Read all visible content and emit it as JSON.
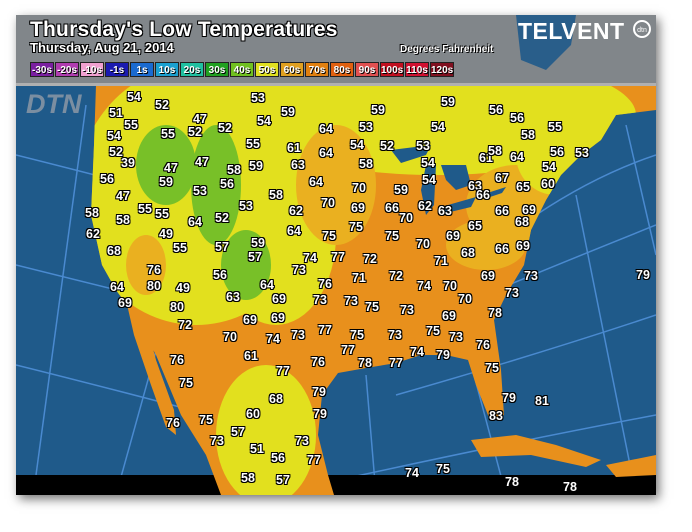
{
  "header": {
    "title": "Thursday's Low Temperatures",
    "date": "Thursday, Aug 21, 2014",
    "units": "Degrees Fahrenheit",
    "logo": "TELVENT",
    "logo_badge": "dtn",
    "watermark": "DTN"
  },
  "legend": [
    {
      "label": "-30s",
      "color": "#7a1fa0"
    },
    {
      "label": "-20s",
      "color": "#b03cb0"
    },
    {
      "label": "-10s",
      "color": "#f0a0d0"
    },
    {
      "label": "-1s",
      "color": "#1a1ab0"
    },
    {
      "label": "1s",
      "color": "#1a6ad0"
    },
    {
      "label": "10s",
      "color": "#1aa0d0"
    },
    {
      "label": "20s",
      "color": "#20c0a0"
    },
    {
      "label": "30s",
      "color": "#20a020"
    },
    {
      "label": "40s",
      "color": "#70c020"
    },
    {
      "label": "50s",
      "color": "#e0e020"
    },
    {
      "label": "60s",
      "color": "#e0a020"
    },
    {
      "label": "70s",
      "color": "#e08010"
    },
    {
      "label": "80s",
      "color": "#e06010"
    },
    {
      "label": "90s",
      "color": "#e05050"
    },
    {
      "label": "100s",
      "color": "#c01020"
    },
    {
      "label": "110s",
      "color": "#d01030"
    },
    {
      "label": "120s",
      "color": "#801020"
    }
  ],
  "colors": {
    "ocean": "#1f5a8a",
    "gridline": "#4a8ad0",
    "land_70s": "#e8901c",
    "land_60s": "#eab020",
    "land_50s": "#e2e01e",
    "land_40s": "#78c028",
    "canada_header": "#8a8a8a"
  },
  "map": {
    "readings": [
      "54",
      "52",
      "53",
      "59",
      "51",
      "55",
      "47",
      "54",
      "52",
      "64",
      "54",
      "55",
      "52",
      "55",
      "52",
      "61",
      "64",
      "39",
      "47",
      "47",
      "58",
      "59",
      "63",
      "56",
      "59",
      "53",
      "56",
      "64",
      "58",
      "53",
      "62",
      "64",
      "70",
      "75",
      "74",
      "73",
      "47",
      "58",
      "55",
      "55",
      "58",
      "64",
      "52",
      "62",
      "49",
      "55",
      "57",
      "59",
      "57",
      "68",
      "76",
      "56",
      "59",
      "59",
      "56",
      "56",
      "53",
      "54",
      "58",
      "55",
      "54",
      "52",
      "53",
      "61",
      "58",
      "64",
      "56",
      "53",
      "58",
      "54",
      "54",
      "67",
      "54",
      "63",
      "65",
      "60",
      "70",
      "59",
      "66",
      "62",
      "69",
      "66",
      "63",
      "66",
      "69",
      "70",
      "75",
      "65",
      "68",
      "75",
      "69",
      "70",
      "68",
      "66",
      "69",
      "77",
      "72",
      "71",
      "71",
      "72",
      "69",
      "73",
      "79",
      "76",
      "74",
      "70",
      "73",
      "73",
      "75",
      "70",
      "73",
      "73",
      "69",
      "78",
      "77",
      "75",
      "73",
      "75",
      "73",
      "76",
      "77",
      "74",
      "79",
      "76",
      "78",
      "77",
      "75",
      "79",
      "79",
      "81",
      "83",
      "79",
      "73",
      "77",
      "74",
      "75",
      "78",
      "78",
      "64",
      "80",
      "49",
      "64",
      "69",
      "80",
      "63",
      "69",
      "72",
      "69",
      "69",
      "70",
      "74",
      "73",
      "76",
      "61",
      "77",
      "75",
      "68",
      "60",
      "76",
      "75",
      "57",
      "73",
      "51",
      "56",
      "58",
      "57"
    ]
  }
}
